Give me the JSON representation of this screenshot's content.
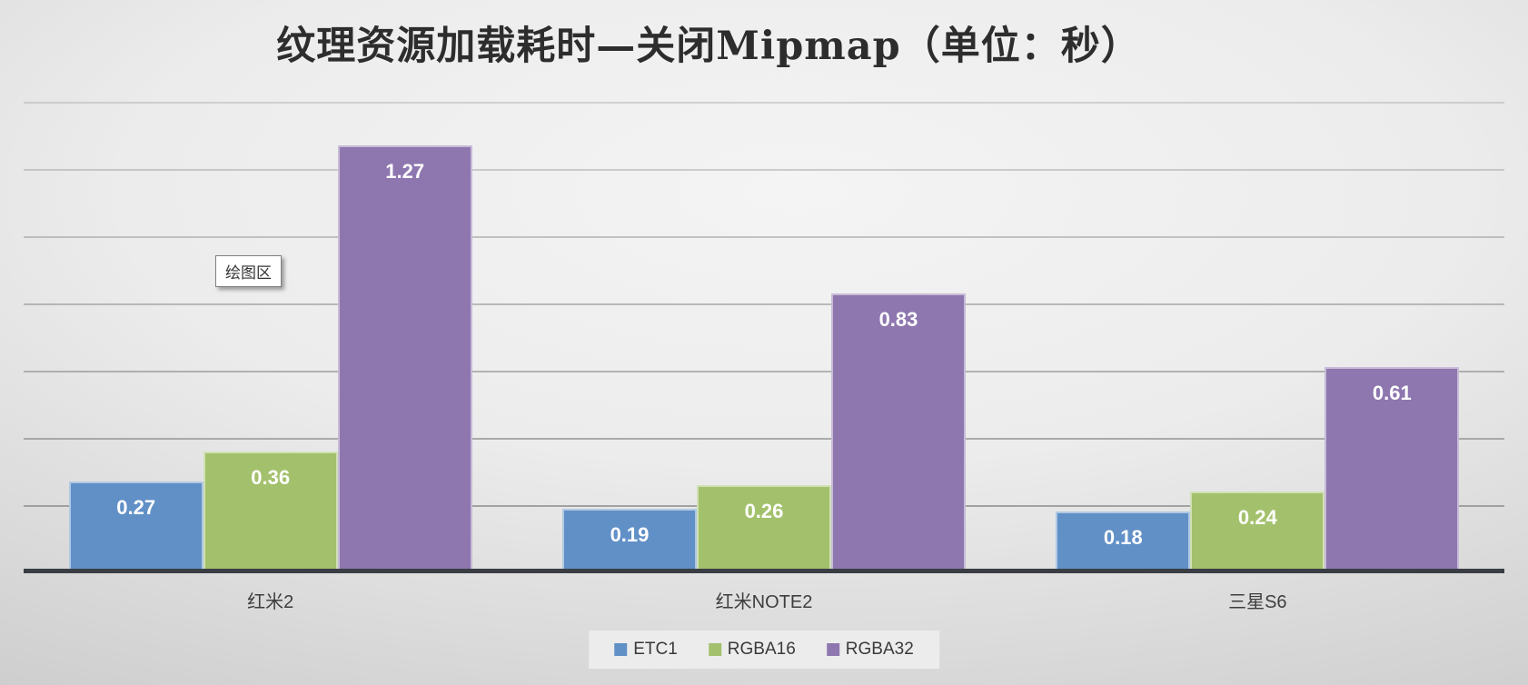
{
  "tooltip": {
    "text": "绘图区"
  },
  "chart_data": {
    "type": "bar",
    "title": "纹理资源加载耗时—关闭Mipmap（单位：秒）",
    "categories": [
      "红米2",
      "红米NOTE2",
      "三星S6"
    ],
    "series": [
      {
        "name": "ETC1",
        "color": "#6190C7",
        "values": [
          0.27,
          0.19,
          0.18
        ]
      },
      {
        "name": "RGBA16",
        "color": "#A3C16C",
        "values": [
          0.36,
          0.26,
          0.24
        ]
      },
      {
        "name": "RGBA32",
        "color": "#8E77AF",
        "values": [
          1.27,
          0.83,
          0.61
        ]
      }
    ],
    "ylim": [
      0,
      1.4
    ],
    "gridline_step": 0.2,
    "grid": true,
    "y_axis_tick_labels": false,
    "value_labels": "inside-end",
    "value_label_color": "#ffffff",
    "legend_position": "bottom",
    "axis_color": "#3A3E44",
    "grid_color": "#8F8F8F"
  }
}
